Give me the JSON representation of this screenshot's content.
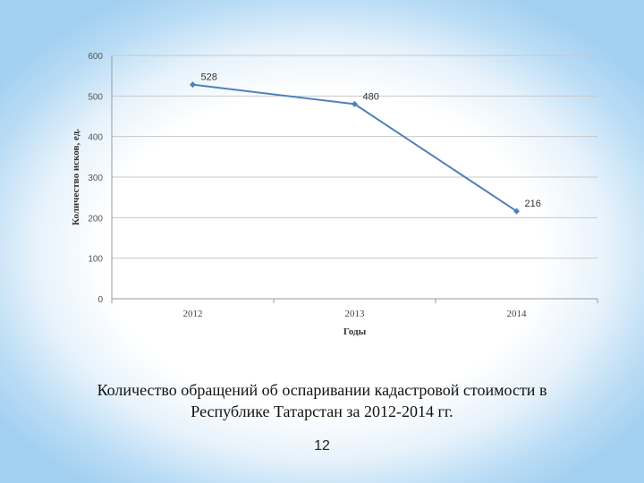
{
  "chart_data": {
    "type": "line",
    "categories": [
      "2012",
      "2013",
      "2014"
    ],
    "series": [
      {
        "values": [
          528,
          480,
          216
        ],
        "color": "#4f81bd"
      }
    ],
    "data_labels": [
      "528",
      "480",
      "216"
    ],
    "xlabel": "Годы",
    "ylabel": "Количество исков, ед.",
    "ylim": [
      0,
      600
    ],
    "yticks": [
      0,
      100,
      200,
      300,
      400,
      500,
      600
    ],
    "grid": true,
    "legend": "none"
  },
  "caption": {
    "line1": "Количество обращений об оспаривании кадастровой стоимости в",
    "line2": "Республике Татарстан за 2012-2014 гг."
  },
  "page_number": "12"
}
